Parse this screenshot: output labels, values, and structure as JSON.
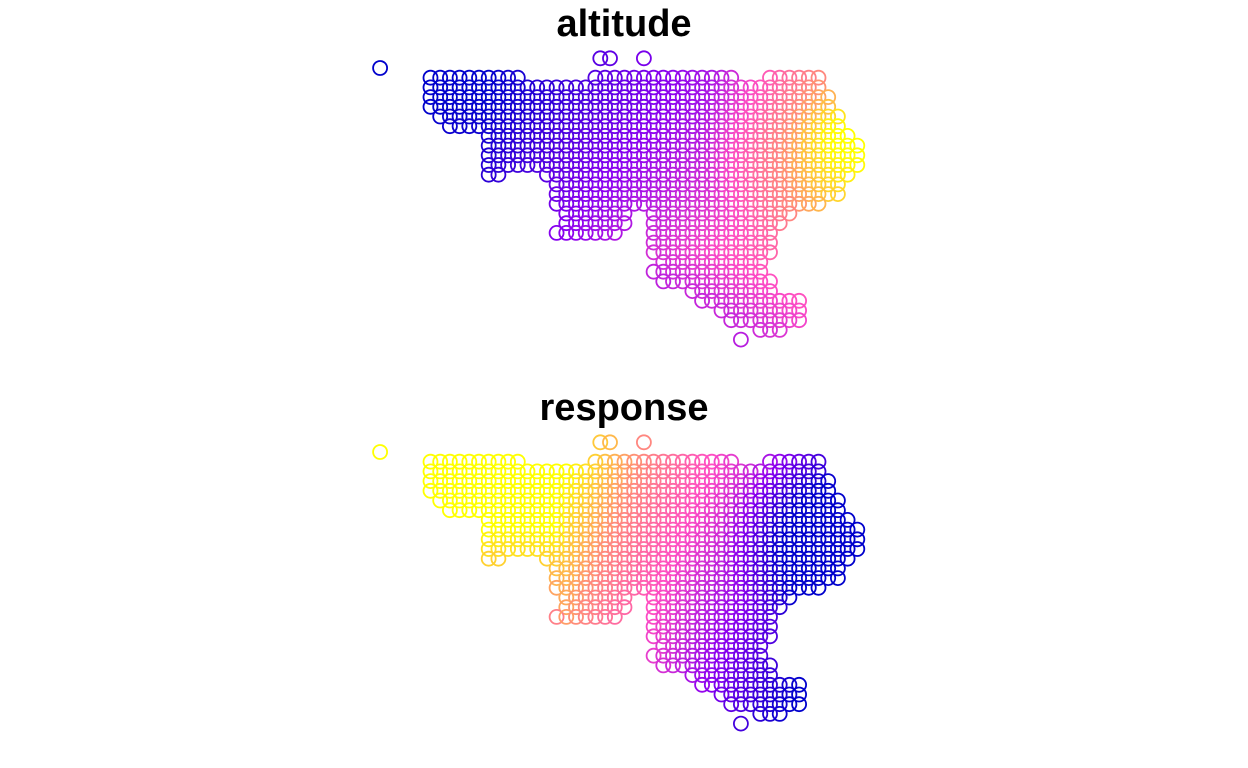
{
  "chart_data": [
    {
      "type": "scatter",
      "title": "altitude",
      "marker": "open-circle",
      "color_scale": [
        "#0000CC",
        "#8B00F0",
        "#FF4DC4",
        "#FF8C7A",
        "#FFFF00"
      ],
      "grid": false,
      "axes": false
    },
    {
      "type": "scatter",
      "title": "response",
      "marker": "open-circle",
      "color_scale": [
        "#0000CC",
        "#8B00F0",
        "#FF4DC4",
        "#FF8C7A",
        "#FFFF00"
      ],
      "grid": false,
      "axes": false
    }
  ]
}
